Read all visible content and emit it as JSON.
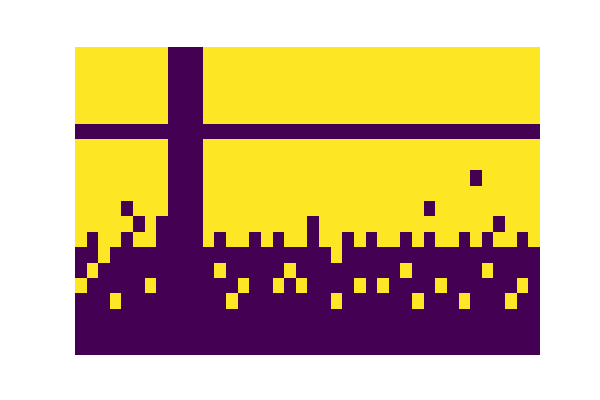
{
  "chart_data": {
    "type": "heatmap",
    "tick_labels": false,
    "clim": [
      0,
      1
    ],
    "cells": [
      [
        1,
        1,
        1,
        1,
        1,
        1,
        1,
        1,
        0,
        0,
        0,
        1,
        1,
        1,
        1,
        1,
        1,
        1,
        1,
        1,
        1,
        1,
        1,
        1,
        1,
        1,
        1,
        1,
        1,
        1,
        1,
        1,
        1,
        1,
        1,
        1,
        1,
        1,
        1,
        1
      ],
      [
        1,
        1,
        1,
        1,
        1,
        1,
        1,
        1,
        0,
        0,
        0,
        1,
        1,
        1,
        1,
        1,
        1,
        1,
        1,
        1,
        1,
        1,
        1,
        1,
        1,
        1,
        1,
        1,
        1,
        1,
        1,
        1,
        1,
        1,
        1,
        1,
        1,
        1,
        1,
        1
      ],
      [
        1,
        1,
        1,
        1,
        1,
        1,
        1,
        1,
        0,
        0,
        0,
        1,
        1,
        1,
        1,
        1,
        1,
        1,
        1,
        1,
        1,
        1,
        1,
        1,
        1,
        1,
        1,
        1,
        1,
        1,
        1,
        1,
        1,
        1,
        1,
        1,
        1,
        1,
        1,
        1
      ],
      [
        1,
        1,
        1,
        1,
        1,
        1,
        1,
        1,
        0,
        0,
        0,
        1,
        1,
        1,
        1,
        1,
        1,
        1,
        1,
        1,
        1,
        1,
        1,
        1,
        1,
        1,
        1,
        1,
        1,
        1,
        1,
        1,
        1,
        1,
        1,
        1,
        1,
        1,
        1,
        1
      ],
      [
        1,
        1,
        1,
        1,
        1,
        1,
        1,
        1,
        0,
        0,
        0,
        1,
        1,
        1,
        1,
        1,
        1,
        1,
        1,
        1,
        1,
        1,
        1,
        1,
        1,
        1,
        1,
        1,
        1,
        1,
        1,
        1,
        1,
        1,
        1,
        1,
        1,
        1,
        1,
        1
      ],
      [
        0,
        0,
        0,
        0,
        0,
        0,
        0,
        0,
        0,
        0,
        0,
        0,
        0,
        0,
        0,
        0,
        0,
        0,
        0,
        0,
        0,
        0,
        0,
        0,
        0,
        0,
        0,
        0,
        0,
        0,
        0,
        0,
        0,
        0,
        0,
        0,
        0,
        0,
        0,
        0
      ],
      [
        1,
        1,
        1,
        1,
        1,
        1,
        1,
        1,
        0,
        0,
        0,
        1,
        1,
        1,
        1,
        1,
        1,
        1,
        1,
        1,
        1,
        1,
        1,
        1,
        1,
        1,
        1,
        1,
        1,
        1,
        1,
        1,
        1,
        1,
        1,
        1,
        1,
        1,
        1,
        1
      ],
      [
        1,
        1,
        1,
        1,
        1,
        1,
        1,
        1,
        0,
        0,
        0,
        1,
        1,
        1,
        1,
        1,
        1,
        1,
        1,
        1,
        1,
        1,
        1,
        1,
        1,
        1,
        1,
        1,
        1,
        1,
        1,
        1,
        1,
        1,
        1,
        1,
        1,
        1,
        1,
        1
      ],
      [
        1,
        1,
        1,
        1,
        1,
        1,
        1,
        1,
        0,
        0,
        0,
        1,
        1,
        1,
        1,
        1,
        1,
        1,
        1,
        1,
        1,
        1,
        1,
        1,
        1,
        1,
        1,
        1,
        1,
        1,
        1,
        1,
        1,
        1,
        0,
        1,
        1,
        1,
        1,
        1
      ],
      [
        1,
        1,
        1,
        1,
        1,
        1,
        1,
        1,
        0,
        0,
        0,
        1,
        1,
        1,
        1,
        1,
        1,
        1,
        1,
        1,
        1,
        1,
        1,
        1,
        1,
        1,
        1,
        1,
        1,
        1,
        1,
        1,
        1,
        1,
        1,
        1,
        1,
        1,
        1,
        1
      ],
      [
        1,
        1,
        1,
        1,
        0,
        1,
        1,
        1,
        0,
        0,
        0,
        1,
        1,
        1,
        1,
        1,
        1,
        1,
        1,
        1,
        1,
        1,
        1,
        1,
        1,
        1,
        1,
        1,
        1,
        1,
        0,
        1,
        1,
        1,
        1,
        1,
        1,
        1,
        1,
        1
      ],
      [
        1,
        1,
        1,
        1,
        1,
        0,
        1,
        0,
        0,
        0,
        0,
        1,
        1,
        1,
        1,
        1,
        1,
        1,
        1,
        1,
        0,
        1,
        1,
        1,
        1,
        1,
        1,
        1,
        1,
        1,
        1,
        1,
        1,
        1,
        1,
        1,
        0,
        1,
        1,
        1
      ],
      [
        1,
        0,
        1,
        1,
        0,
        1,
        1,
        0,
        0,
        0,
        0,
        1,
        0,
        1,
        1,
        0,
        1,
        0,
        1,
        1,
        0,
        1,
        1,
        0,
        1,
        0,
        1,
        1,
        0,
        1,
        0,
        1,
        1,
        0,
        1,
        0,
        1,
        1,
        0,
        1
      ],
      [
        0,
        0,
        1,
        0,
        0,
        0,
        0,
        0,
        0,
        0,
        0,
        0,
        0,
        0,
        0,
        0,
        0,
        0,
        0,
        0,
        0,
        0,
        1,
        0,
        0,
        0,
        0,
        0,
        0,
        0,
        0,
        0,
        0,
        0,
        0,
        0,
        0,
        0,
        0,
        0
      ],
      [
        0,
        1,
        0,
        0,
        0,
        0,
        0,
        0,
        0,
        0,
        0,
        0,
        1,
        0,
        0,
        0,
        0,
        0,
        1,
        0,
        0,
        0,
        0,
        0,
        0,
        0,
        0,
        0,
        1,
        0,
        0,
        0,
        0,
        0,
        0,
        1,
        0,
        0,
        0,
        0
      ],
      [
        1,
        0,
        0,
        0,
        0,
        0,
        1,
        0,
        0,
        0,
        0,
        0,
        0,
        0,
        1,
        0,
        0,
        1,
        0,
        1,
        0,
        0,
        0,
        0,
        1,
        0,
        1,
        0,
        0,
        0,
        0,
        1,
        0,
        0,
        0,
        0,
        0,
        0,
        1,
        0
      ],
      [
        0,
        0,
        0,
        1,
        0,
        0,
        0,
        0,
        0,
        0,
        0,
        0,
        0,
        1,
        0,
        0,
        0,
        0,
        0,
        0,
        0,
        0,
        1,
        0,
        0,
        0,
        0,
        0,
        0,
        1,
        0,
        0,
        0,
        1,
        0,
        0,
        0,
        1,
        0,
        0
      ],
      [
        0,
        0,
        0,
        0,
        0,
        0,
        0,
        0,
        0,
        0,
        0,
        0,
        0,
        0,
        0,
        0,
        0,
        0,
        0,
        0,
        0,
        0,
        0,
        0,
        0,
        0,
        0,
        0,
        0,
        0,
        0,
        0,
        0,
        0,
        0,
        0,
        0,
        0,
        0,
        0
      ],
      [
        0,
        0,
        0,
        0,
        0,
        0,
        0,
        0,
        0,
        0,
        0,
        0,
        0,
        0,
        0,
        0,
        0,
        0,
        0,
        0,
        0,
        0,
        0,
        0,
        0,
        0,
        0,
        0,
        0,
        0,
        0,
        0,
        0,
        0,
        0,
        0,
        0,
        0,
        0,
        0
      ],
      [
        0,
        0,
        0,
        0,
        0,
        0,
        0,
        0,
        0,
        0,
        0,
        0,
        0,
        0,
        0,
        0,
        0,
        0,
        0,
        0,
        0,
        0,
        0,
        0,
        0,
        0,
        0,
        0,
        0,
        0,
        0,
        0,
        0,
        0,
        0,
        0,
        0,
        0,
        0,
        0
      ]
    ]
  }
}
